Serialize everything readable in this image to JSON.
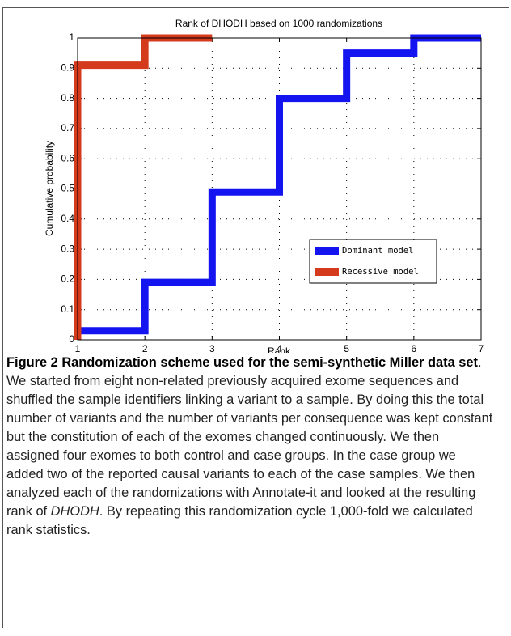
{
  "chart_data": {
    "type": "step",
    "title": "Rank of DHODH based on 1000 randomizations",
    "xlabel": "Rank",
    "ylabel": "Cumulative probability",
    "series": [
      {
        "name": "Dominant model",
        "color": "#1414f0",
        "x": [
          1,
          2,
          3,
          4,
          5,
          6,
          7
        ],
        "values": [
          0.03,
          0.19,
          0.49,
          0.8,
          0.95,
          1,
          1
        ]
      },
      {
        "name": "Recessive model",
        "color": "#d43a1c",
        "x": [
          1,
          1,
          2,
          3
        ],
        "values": [
          0,
          0.91,
          1,
          1
        ]
      }
    ],
    "xlim": [
      1,
      7
    ],
    "xticks": [
      1,
      2,
      3,
      4,
      5,
      6,
      7
    ],
    "ylim": [
      0,
      1
    ],
    "yticks": [
      0,
      0.1,
      0.2,
      0.3,
      0.4,
      0.5,
      0.6,
      0.7,
      0.8,
      0.9,
      1
    ],
    "grid": true,
    "legend": "lower right"
  },
  "caption": {
    "label": "Figure 2",
    "title": "Randomization scheme used for the semi-synthetic Miller data set",
    "text_before": ". We started from eight non-related previously acquired exome sequences and shuffled the sample identifiers linking a variant to a sample. By doing this the total number of variants and the number of variants per consequence was kept constant but the constitution of each of the exomes changed continuously. We then assigned four exomes to both control and case groups. In the case group we added two of the reported causal variants to each of the case samples. We then analyzed each of the randomizations with Annotate-it and looked at the resulting rank of ",
    "italic": "DHODH",
    "text_after": ". By repeating this randomization cycle 1,000-fold we calculated rank statistics."
  }
}
